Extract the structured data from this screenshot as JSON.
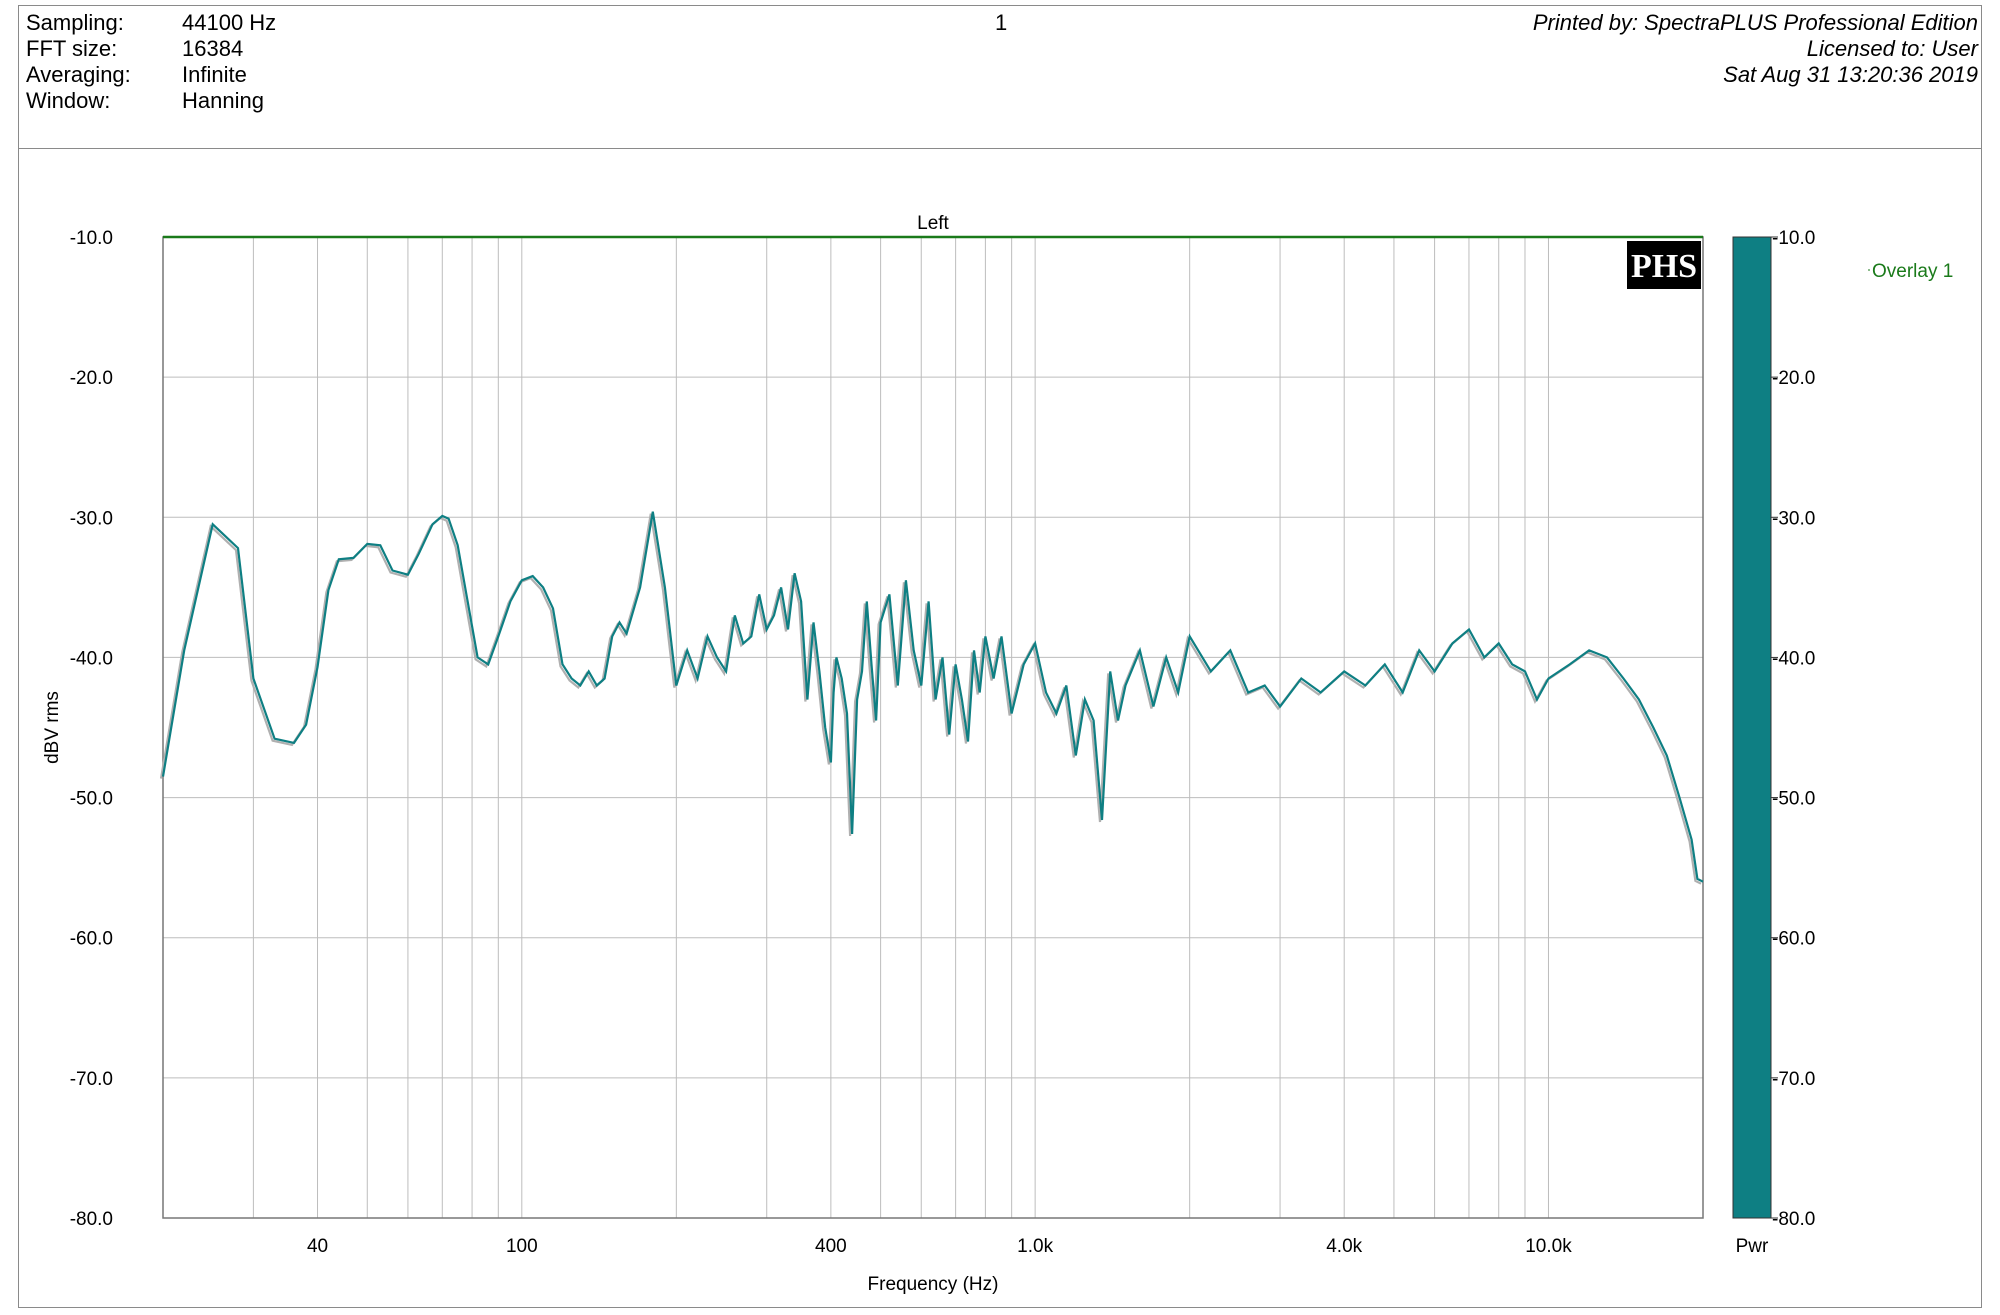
{
  "header": {
    "fields": [
      {
        "label": "Sampling:",
        "value": "44100 Hz"
      },
      {
        "label": "FFT size:",
        "value": "16384"
      },
      {
        "label": "Averaging:",
        "value": "Infinite"
      },
      {
        "label": "Window:",
        "value": "Hanning"
      }
    ],
    "page_number": "1",
    "printed_by": "Printed by: SpectraPLUS Professional Edition",
    "licensed_to": "Licensed to: User",
    "timestamp": "Sat Aug 31 13:20:36 2019"
  },
  "logo_text": "PHS",
  "colors": {
    "trace": "#0e7f83",
    "overlay": "#b0b0b0",
    "top_line": "#1a7a1a",
    "grid": "#bdbdbd"
  },
  "chart_data": {
    "type": "line",
    "title": "Left",
    "xlabel": "Frequency (Hz)",
    "ylabel": "dBV rms",
    "xscale": "log",
    "xlim": [
      20,
      20000
    ],
    "ylim": [
      -80,
      -10
    ],
    "x_tick_labels": [
      {
        "value": 40,
        "label": "40"
      },
      {
        "value": 100,
        "label": "100"
      },
      {
        "value": 400,
        "label": "400"
      },
      {
        "value": 1000,
        "label": "1.0k"
      },
      {
        "value": 4000,
        "label": "4.0k"
      },
      {
        "value": 10000,
        "label": "10.0k"
      }
    ],
    "y_ticks": [
      -10,
      -20,
      -30,
      -40,
      -50,
      -60,
      -70,
      -80
    ],
    "y_tick_labels": [
      "-10.0",
      "-20.0",
      "-30.0",
      "-40.0",
      "-50.0",
      "-60.0",
      "-70.0",
      "-80.0"
    ],
    "legend": [
      "Overlay 1"
    ],
    "colorbar_label": "Pwr",
    "series": [
      {
        "name": "Left",
        "x": [
          20,
          22,
          25,
          28,
          30,
          33,
          36,
          38,
          40,
          42,
          44,
          47,
          50,
          53,
          56,
          60,
          63,
          67,
          70,
          72,
          75,
          78,
          82,
          86,
          90,
          95,
          100,
          105,
          110,
          115,
          120,
          125,
          130,
          135,
          140,
          145,
          150,
          155,
          160,
          170,
          180,
          190,
          200,
          210,
          220,
          230,
          240,
          250,
          260,
          270,
          280,
          290,
          300,
          310,
          320,
          330,
          340,
          350,
          360,
          370,
          380,
          390,
          400,
          405,
          410,
          420,
          430,
          440,
          450,
          460,
          470,
          480,
          490,
          500,
          520,
          540,
          560,
          580,
          600,
          620,
          640,
          660,
          680,
          700,
          720,
          740,
          760,
          780,
          800,
          830,
          860,
          900,
          950,
          1000,
          1050,
          1100,
          1150,
          1200,
          1250,
          1300,
          1350,
          1400,
          1450,
          1500,
          1600,
          1700,
          1800,
          1900,
          2000,
          2200,
          2400,
          2600,
          2800,
          3000,
          3300,
          3600,
          4000,
          4400,
          4800,
          5200,
          5600,
          6000,
          6500,
          7000,
          7500,
          8000,
          8500,
          9000,
          9500,
          10000,
          11000,
          12000,
          13000,
          14000,
          15000,
          16000,
          17000,
          18000,
          19000,
          19500,
          20000
        ],
        "y": [
          -48.5,
          -39.5,
          -30.5,
          -32.2,
          -41.5,
          -45.8,
          -46.1,
          -44.8,
          -40.7,
          -35.2,
          -33.0,
          -32.9,
          -31.9,
          -32.0,
          -33.8,
          -34.1,
          -32.6,
          -30.5,
          -29.9,
          -30.1,
          -32.0,
          -35.5,
          -40.0,
          -40.5,
          -38.5,
          -36.0,
          -34.5,
          -34.2,
          -35.0,
          -36.5,
          -40.5,
          -41.5,
          -42.0,
          -41.0,
          -42.0,
          -41.5,
          -38.5,
          -37.5,
          -38.3,
          -35.0,
          -29.6,
          -35.0,
          -42.0,
          -39.5,
          -41.5,
          -38.5,
          -40.0,
          -41.0,
          -37.0,
          -39.0,
          -38.5,
          -35.5,
          -38.0,
          -37.0,
          -35.0,
          -38.0,
          -34.0,
          -36.0,
          -43.0,
          -37.5,
          -41.0,
          -45.0,
          -47.5,
          -42.5,
          -40.0,
          -41.5,
          -44.0,
          -52.6,
          -43.0,
          -41.0,
          -36.0,
          -40.5,
          -44.5,
          -37.5,
          -35.5,
          -42.0,
          -34.5,
          -39.5,
          -42.0,
          -36.0,
          -43.0,
          -40.0,
          -45.5,
          -40.5,
          -43.0,
          -46.0,
          -39.5,
          -42.5,
          -38.5,
          -41.5,
          -38.5,
          -44.0,
          -40.5,
          -39.0,
          -42.5,
          -44.0,
          -42.0,
          -47.0,
          -43.0,
          -44.5,
          -51.6,
          -41.0,
          -44.5,
          -42.0,
          -39.5,
          -43.5,
          -40.0,
          -42.5,
          -38.5,
          -41.0,
          -39.5,
          -42.5,
          -42.0,
          -43.5,
          -41.5,
          -42.5,
          -41.0,
          -42.0,
          -40.5,
          -42.5,
          -39.5,
          -41.0,
          -39.0,
          -38.0,
          -40.0,
          -39.0,
          -40.5,
          -41.0,
          -43.0,
          -41.5,
          -40.5,
          -39.5,
          -40.0,
          -41.5,
          -43.0,
          -45.0,
          -47.0,
          -50.0,
          -53.0,
          -55.8,
          -56.0
        ]
      }
    ]
  }
}
